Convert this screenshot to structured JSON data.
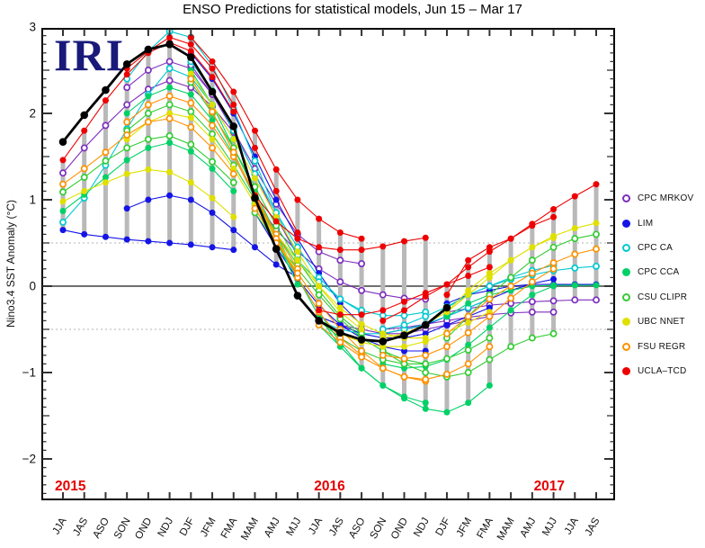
{
  "title": "ENSO Predictions for statistical models, Jun 15 – Mar 17",
  "logo": {
    "text": "IRI",
    "color": "#191a7a"
  },
  "legend": {
    "position": "right",
    "items": [
      {
        "label": "CPC MRKOV",
        "color": "#7d2fbe",
        "filled": false
      },
      {
        "label": "LIM",
        "color": "#1414e6",
        "filled": true
      },
      {
        "label": "CPC CA",
        "color": "#00c9d0",
        "filled": false
      },
      {
        "label": "CPC CCA",
        "color": "#00d166",
        "filled": true
      },
      {
        "label": "CSU CLIPR",
        "color": "#33cc33",
        "filled": false
      },
      {
        "label": "UBC NNET",
        "color": "#e0e000",
        "filled": true
      },
      {
        "label": "FSU REGR",
        "color": "#ff9100",
        "filled": false
      },
      {
        "label": "UCLA–TCD",
        "color": "#ee0000",
        "filled": true
      }
    ]
  },
  "chart_data": {
    "type": "line",
    "title": "ENSO Predictions for statistical models, Jun 15 – Mar 17",
    "ylabel": "Nino3.4 SST Anomaly (°C)",
    "ylim": [
      -2.47,
      2.98
    ],
    "yticks_labeled": [
      3,
      2,
      1,
      0,
      -1,
      -2
    ],
    "y_minor_step": 0.1,
    "reference_lines": {
      "solid": [
        0
      ],
      "dotted": [
        0.5,
        -0.5
      ]
    },
    "grid": false,
    "x_categories": [
      "JJA",
      "JAS",
      "ASO",
      "SON",
      "OND",
      "NDJ",
      "DJF",
      "JFM",
      "FMA",
      "MAM",
      "AMJ",
      "MJJ",
      "JJA",
      "JAS",
      "ASO",
      "SON",
      "OND",
      "NDJ",
      "DJF",
      "JFM",
      "FMA",
      "MAM",
      "AMJ",
      "MJJ",
      "JJA",
      "JAS"
    ],
    "year_labels": [
      {
        "text": "2015",
        "index": 0.35,
        "color": "#e60000"
      },
      {
        "text": "2016",
        "index": 12.5,
        "color": "#e60000"
      },
      {
        "text": "2017",
        "index": 22.8,
        "color": "#e60000"
      }
    ],
    "observations": {
      "name": "Observed Nino3.4 anomaly",
      "color": "#000000",
      "start_index": 0,
      "values": [
        1.67,
        1.98,
        2.27,
        2.57,
        2.74,
        2.8,
        2.65,
        2.25,
        1.85,
        1.02,
        0.43,
        -0.11,
        -0.4,
        -0.54,
        -0.62,
        -0.64,
        -0.57,
        -0.45,
        -0.25
      ]
    },
    "spread_bar_color": "#b9b9b9",
    "models": [
      {
        "name": "CPC MRKOV",
        "color": "#7d2fbe",
        "filled": false
      },
      {
        "name": "LIM",
        "color": "#1414e6",
        "filled": true
      },
      {
        "name": "CPC CA",
        "color": "#00c9d0",
        "filled": false
      },
      {
        "name": "CPC CCA",
        "color": "#00d166",
        "filled": true
      },
      {
        "name": "CSU CLIPR",
        "color": "#33cc33",
        "filled": false
      },
      {
        "name": "UBC NNET",
        "color": "#e0e000",
        "filled": true
      },
      {
        "name": "FSU REGR",
        "color": "#ff9100",
        "filled": false
      },
      {
        "name": "UCLA–TCD",
        "color": "#ee0000",
        "filled": true
      }
    ],
    "forecasts": [
      {
        "model": "CPC MRKOV",
        "start_index": 0,
        "values": [
          1.31,
          1.6,
          1.86,
          2.1,
          2.28,
          2.38,
          2.3,
          2.08,
          1.78
        ]
      },
      {
        "model": "CPC MRKOV",
        "start_index": 3,
        "values": [
          2.3,
          2.5,
          2.6,
          2.52,
          2.22,
          1.8,
          1.3,
          0.8,
          0.35
        ]
      },
      {
        "model": "CPC MRKOV",
        "start_index": 6,
        "values": [
          2.56,
          2.22,
          1.8,
          1.36,
          0.95,
          0.6,
          0.4,
          0.3,
          0.26
        ]
      },
      {
        "model": "CPC MRKOV",
        "start_index": 9,
        "values": [
          1.0,
          0.65,
          0.4,
          0.2,
          0.05,
          -0.05,
          -0.1,
          -0.14,
          -0.15
        ]
      },
      {
        "model": "CPC MRKOV",
        "start_index": 12,
        "values": [
          -0.35,
          -0.45,
          -0.5,
          -0.55,
          -0.55,
          -0.5,
          -0.45,
          -0.4,
          -0.35
        ]
      },
      {
        "model": "CPC MRKOV",
        "start_index": 15,
        "values": [
          -0.5,
          -0.48,
          -0.44,
          -0.4,
          -0.36,
          -0.33,
          -0.31,
          -0.3,
          -0.3
        ]
      },
      {
        "model": "CPC MRKOV",
        "start_index": 18,
        "values": [
          -0.3,
          -0.26,
          -0.22,
          -0.2,
          -0.18,
          -0.17,
          -0.16,
          -0.16
        ]
      },
      {
        "model": "LIM",
        "start_index": 0,
        "values": [
          0.65,
          0.6,
          0.57,
          0.54,
          0.52,
          0.5,
          0.48,
          0.45,
          0.42
        ]
      },
      {
        "model": "LIM",
        "start_index": 3,
        "values": [
          0.9,
          1.0,
          1.05,
          1.0,
          0.85,
          0.65,
          0.45,
          0.25,
          0.1
        ]
      },
      {
        "model": "LIM",
        "start_index": 6,
        "values": [
          2.7,
          2.4,
          2.0,
          1.5,
          1.0,
          0.55,
          0.15,
          -0.2,
          -0.45
        ]
      },
      {
        "model": "LIM",
        "start_index": 9,
        "values": [
          0.85,
          0.45,
          0.08,
          -0.22,
          -0.45,
          -0.6,
          -0.7,
          -0.75,
          -0.75
        ]
      },
      {
        "model": "LIM",
        "start_index": 12,
        "values": [
          -0.35,
          -0.45,
          -0.55,
          -0.6,
          -0.6,
          -0.55,
          -0.45,
          -0.35,
          -0.25
        ]
      },
      {
        "model": "LIM",
        "start_index": 15,
        "values": [
          -0.55,
          -0.5,
          -0.45,
          -0.35,
          -0.25,
          -0.15,
          -0.05,
          0.03,
          0.08
        ]
      },
      {
        "model": "LIM",
        "start_index": 18,
        "values": [
          -0.2,
          -0.1,
          -0.05,
          0.0,
          0.02,
          0.02,
          0.02,
          0.02
        ]
      },
      {
        "model": "CPC CA",
        "start_index": 0,
        "values": [
          0.74,
          1.02,
          1.4,
          1.82,
          2.22,
          2.52,
          2.42,
          2.1,
          1.7
        ]
      },
      {
        "model": "CPC CA",
        "start_index": 3,
        "values": [
          2.4,
          2.72,
          2.95,
          2.88,
          2.55,
          2.05,
          1.45,
          0.85,
          0.35
        ]
      },
      {
        "model": "CPC CA",
        "start_index": 6,
        "values": [
          2.6,
          2.26,
          1.8,
          1.3,
          0.85,
          0.45,
          0.1,
          -0.15,
          -0.3
        ]
      },
      {
        "model": "CPC CA",
        "start_index": 9,
        "values": [
          0.95,
          0.6,
          0.3,
          0.05,
          -0.15,
          -0.28,
          -0.34,
          -0.34,
          -0.3
        ]
      },
      {
        "model": "CPC CA",
        "start_index": 12,
        "values": [
          -0.4,
          -0.5,
          -0.55,
          -0.55,
          -0.5,
          -0.44,
          -0.35,
          -0.25,
          -0.15
        ]
      },
      {
        "model": "CPC CA",
        "start_index": 15,
        "values": [
          -0.5,
          -0.45,
          -0.35,
          -0.24,
          -0.1,
          0.0,
          0.1,
          0.18,
          0.24
        ]
      },
      {
        "model": "CPC CA",
        "start_index": 18,
        "values": [
          -0.25,
          -0.1,
          0.0,
          0.08,
          0.13,
          0.18,
          0.21,
          0.23
        ]
      },
      {
        "model": "CPC CCA",
        "start_index": 0,
        "values": [
          0.87,
          1.06,
          1.26,
          1.46,
          1.6,
          1.66,
          1.56,
          1.36,
          1.1
        ]
      },
      {
        "model": "CPC CCA",
        "start_index": 3,
        "values": [
          2.0,
          2.2,
          2.3,
          2.22,
          1.92,
          1.52,
          1.02,
          0.52,
          0.02
        ]
      },
      {
        "model": "CPC CCA",
        "start_index": 6,
        "values": [
          2.5,
          2.1,
          1.6,
          1.1,
          0.6,
          0.1,
          -0.35,
          -0.7,
          -0.95
        ]
      },
      {
        "model": "CPC CCA",
        "start_index": 9,
        "values": [
          0.9,
          0.5,
          0.1,
          -0.3,
          -0.65,
          -0.95,
          -1.15,
          -1.28,
          -1.35
        ]
      },
      {
        "model": "CPC CCA",
        "start_index": 12,
        "values": [
          -0.45,
          -0.7,
          -0.95,
          -1.15,
          -1.3,
          -1.42,
          -1.46,
          -1.35,
          -1.15
        ]
      },
      {
        "model": "CPC CCA",
        "start_index": 15,
        "values": [
          -0.9,
          -0.95,
          -0.93,
          -0.85,
          -0.68,
          -0.48,
          -0.28,
          -0.1,
          0.0
        ]
      },
      {
        "model": "CPC CCA",
        "start_index": 18,
        "values": [
          -0.35,
          -0.2,
          -0.1,
          -0.05,
          0.0,
          0.01,
          0.01,
          0.01
        ]
      },
      {
        "model": "CSU CLIPR",
        "start_index": 0,
        "values": [
          1.09,
          1.26,
          1.45,
          1.6,
          1.7,
          1.74,
          1.64,
          1.44,
          1.2
        ]
      },
      {
        "model": "CSU CLIPR",
        "start_index": 3,
        "values": [
          1.8,
          2.0,
          2.1,
          2.02,
          1.76,
          1.4,
          1.0,
          0.6,
          0.25
        ]
      },
      {
        "model": "CSU CLIPR",
        "start_index": 6,
        "values": [
          2.36,
          2.0,
          1.6,
          1.15,
          0.7,
          0.3,
          -0.05,
          -0.35,
          -0.55
        ]
      },
      {
        "model": "CSU CLIPR",
        "start_index": 9,
        "values": [
          0.85,
          0.5,
          0.2,
          -0.1,
          -0.38,
          -0.6,
          -0.75,
          -0.85,
          -0.9
        ]
      },
      {
        "model": "CSU CLIPR",
        "start_index": 12,
        "values": [
          -0.4,
          -0.6,
          -0.75,
          -0.85,
          -0.9,
          -0.9,
          -0.84,
          -0.74,
          -0.6
        ]
      },
      {
        "model": "CSU CLIPR",
        "start_index": 15,
        "values": [
          -0.75,
          -0.9,
          -1.0,
          -1.05,
          -1.0,
          -0.85,
          -0.7,
          -0.6,
          -0.55
        ]
      },
      {
        "model": "CSU CLIPR",
        "start_index": 18,
        "values": [
          -0.6,
          -0.35,
          -0.1,
          0.1,
          0.3,
          0.45,
          0.55,
          0.6
        ]
      },
      {
        "model": "UBC NNET",
        "start_index": 0,
        "values": [
          0.98,
          1.1,
          1.2,
          1.3,
          1.35,
          1.32,
          1.2,
          1.02,
          0.8
        ]
      },
      {
        "model": "UBC NNET",
        "start_index": 3,
        "values": [
          1.7,
          1.9,
          2.0,
          1.95,
          1.7,
          1.36,
          0.95,
          0.55,
          0.15
        ]
      },
      {
        "model": "UBC NNET",
        "start_index": 6,
        "values": [
          2.46,
          2.1,
          1.7,
          1.25,
          0.8,
          0.4,
          0.0,
          -0.3,
          -0.5
        ]
      },
      {
        "model": "UBC NNET",
        "start_index": 9,
        "values": [
          0.95,
          0.6,
          0.3,
          0.0,
          -0.25,
          -0.44,
          -0.55,
          -0.6,
          -0.6
        ]
      },
      {
        "model": "UBC NNET",
        "start_index": 12,
        "values": [
          -0.4,
          -0.55,
          -0.65,
          -0.7,
          -0.7,
          -0.64,
          -0.54,
          -0.42,
          -0.3
        ]
      },
      {
        "model": "UBC NNET",
        "start_index": 15,
        "values": [
          -0.6,
          -0.55,
          -0.44,
          -0.3,
          -0.1,
          0.1,
          0.3,
          0.45,
          0.56
        ]
      },
      {
        "model": "UBC NNET",
        "start_index": 18,
        "values": [
          -0.3,
          -0.05,
          0.15,
          0.3,
          0.45,
          0.58,
          0.67,
          0.73
        ]
      },
      {
        "model": "FSU REGR",
        "start_index": 0,
        "values": [
          1.18,
          1.36,
          1.55,
          1.75,
          1.9,
          1.94,
          1.84,
          1.6,
          1.3
        ]
      },
      {
        "model": "FSU REGR",
        "start_index": 3,
        "values": [
          1.9,
          2.1,
          2.2,
          2.12,
          1.86,
          1.5,
          1.05,
          0.6,
          0.2
        ]
      },
      {
        "model": "FSU REGR",
        "start_index": 6,
        "values": [
          2.4,
          2.02,
          1.55,
          1.05,
          0.55,
          0.1,
          -0.3,
          -0.6,
          -0.8
        ]
      },
      {
        "model": "FSU REGR",
        "start_index": 9,
        "values": [
          0.9,
          0.5,
          0.15,
          -0.2,
          -0.5,
          -0.75,
          -0.95,
          -1.05,
          -1.1
        ]
      },
      {
        "model": "FSU REGR",
        "start_index": 12,
        "values": [
          -0.45,
          -0.65,
          -0.82,
          -0.95,
          -1.05,
          -1.08,
          -1.02,
          -0.9,
          -0.7
        ]
      },
      {
        "model": "FSU REGR",
        "start_index": 15,
        "values": [
          -0.8,
          -0.84,
          -0.8,
          -0.7,
          -0.54,
          -0.35,
          -0.14,
          0.05,
          0.2
        ]
      },
      {
        "model": "FSU REGR",
        "start_index": 18,
        "values": [
          -0.55,
          -0.35,
          -0.15,
          0.0,
          0.15,
          0.27,
          0.37,
          0.43
        ]
      },
      {
        "model": "UCLA–TCD",
        "start_index": 0,
        "values": [
          1.46,
          1.8,
          2.15,
          2.45,
          2.7,
          2.82,
          2.72,
          2.42,
          2.02
        ]
      },
      {
        "model": "UCLA–TCD",
        "start_index": 3,
        "values": [
          2.52,
          2.72,
          2.88,
          2.8,
          2.52,
          2.1,
          1.6,
          1.1,
          0.62
        ]
      },
      {
        "model": "UCLA–TCD",
        "start_index": 6,
        "values": [
          2.88,
          2.6,
          2.25,
          1.8,
          1.35,
          1.0,
          0.78,
          0.62,
          0.55
        ]
      },
      {
        "model": "UCLA–TCD",
        "start_index": 9,
        "values": [
          1.05,
          0.75,
          0.55,
          0.45,
          0.42,
          0.42,
          0.46,
          0.52,
          0.56
        ]
      },
      {
        "model": "UCLA–TCD",
        "start_index": 12,
        "values": [
          -0.28,
          -0.33,
          -0.33,
          -0.28,
          -0.18,
          -0.08,
          0.02,
          0.12,
          0.22
        ]
      },
      {
        "model": "UCLA–TCD",
        "start_index": 15,
        "values": [
          -0.4,
          -0.28,
          -0.12,
          0.02,
          0.22,
          0.4,
          0.55,
          0.7,
          0.8
        ]
      },
      {
        "model": "UCLA–TCD",
        "start_index": 18,
        "values": [
          -0.1,
          0.3,
          0.45,
          0.55,
          0.72,
          0.89,
          1.04,
          1.18
        ]
      }
    ]
  }
}
